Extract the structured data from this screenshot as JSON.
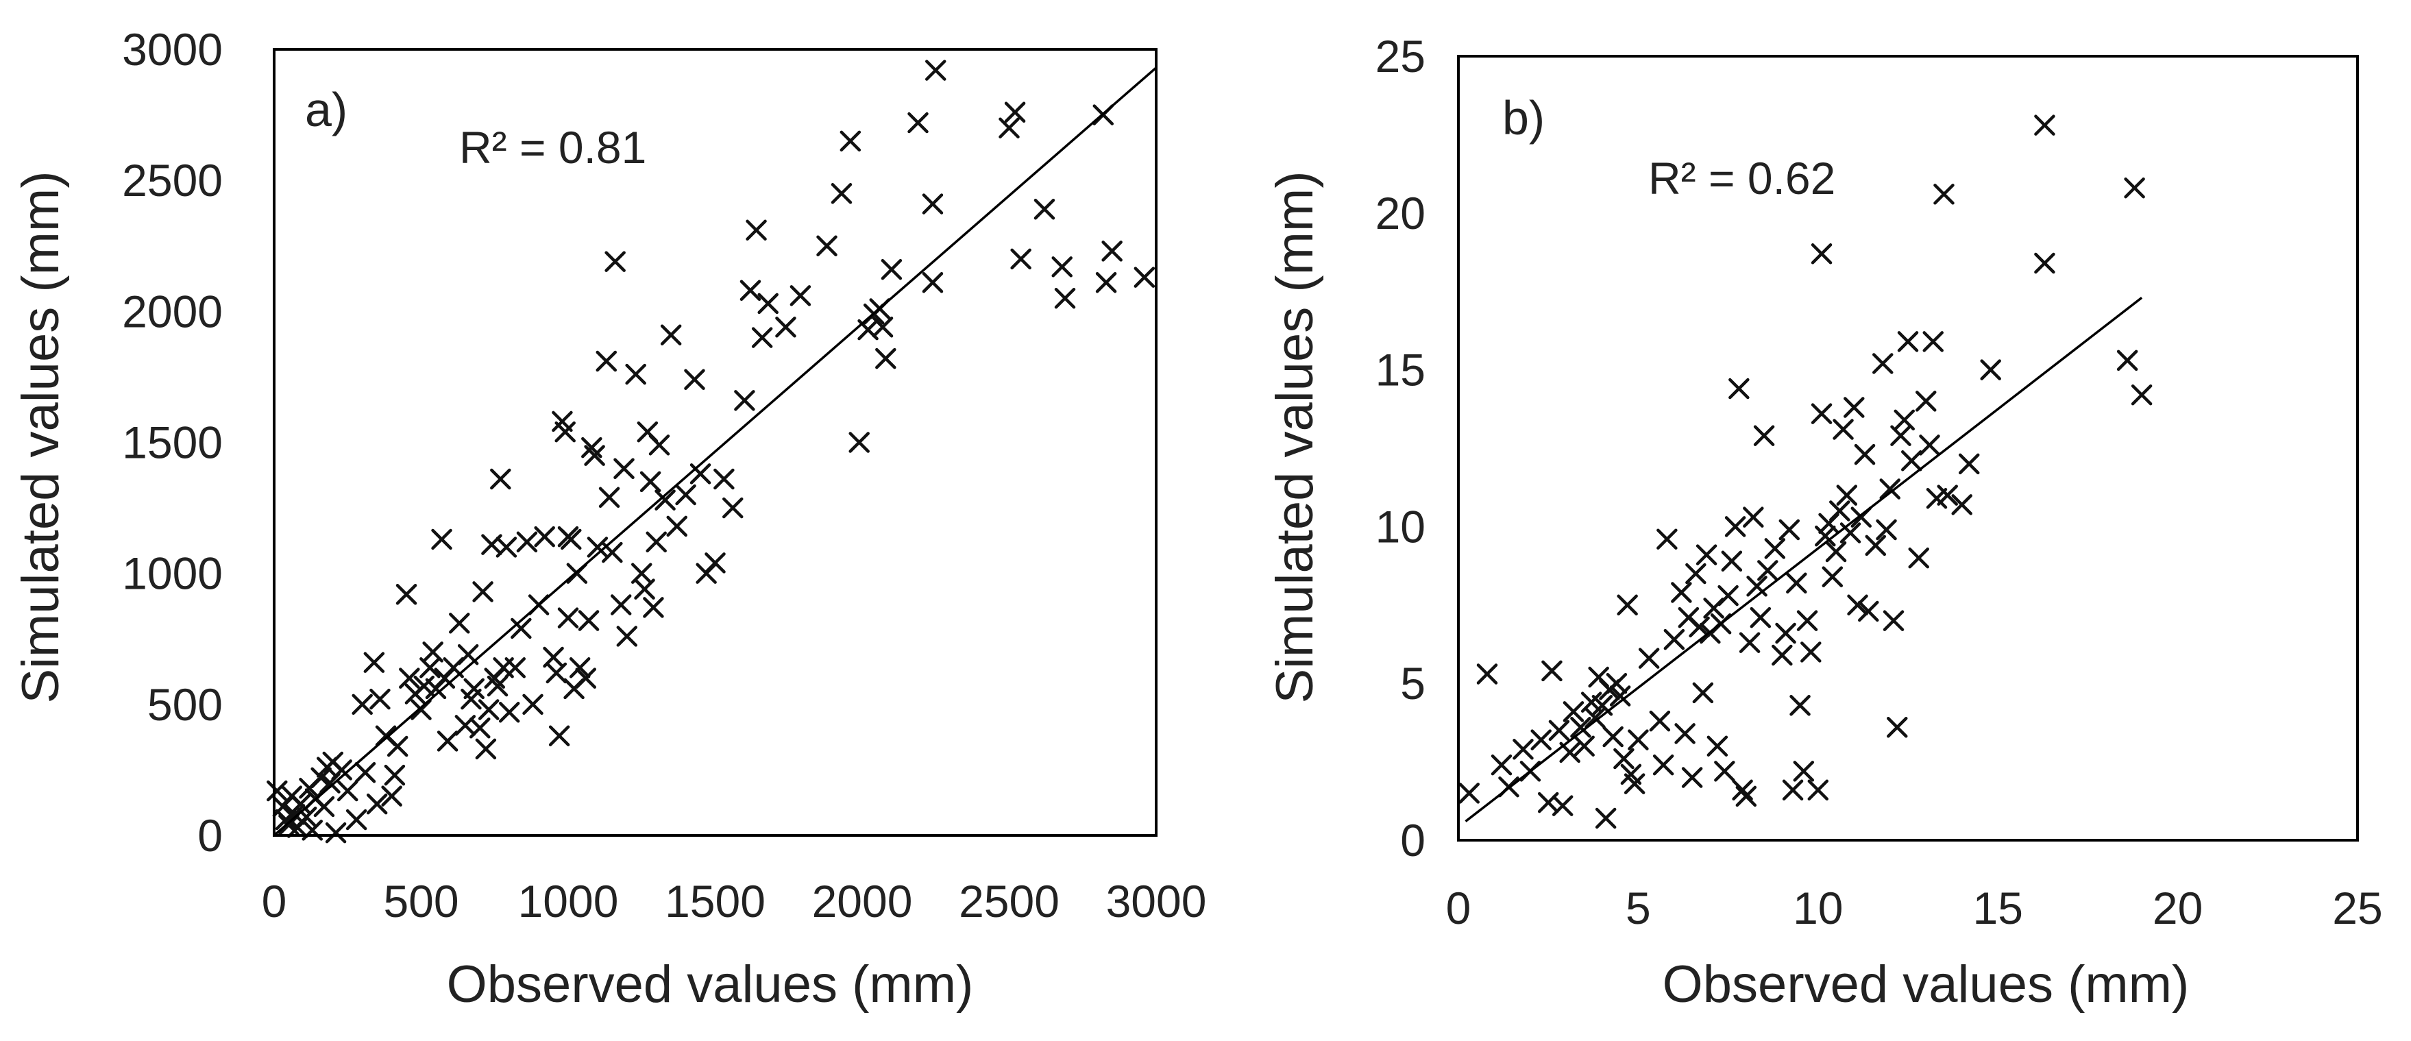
{
  "chart_data": [
    {
      "type": "scatter",
      "panel_label": "a)",
      "annotation": "R² = 0.81",
      "xlabel": "Observed values (mm)",
      "ylabel": "Simulated values (mm)",
      "xlim": [
        0,
        3000
      ],
      "ylim": [
        0,
        3000
      ],
      "xticks": [
        "0",
        "500",
        "1000",
        "1500",
        "2000",
        "2500",
        "3000"
      ],
      "yticks": [
        "0",
        "500",
        "1000",
        "1500",
        "2000",
        "2500",
        "3000"
      ],
      "marker": "x",
      "grid": false,
      "trendline": {
        "x": [
          0,
          3000
        ],
        "y": [
          0,
          2930
        ]
      },
      "points": [
        [
          10,
          170
        ],
        [
          30,
          110
        ],
        [
          40,
          60
        ],
        [
          50,
          40
        ],
        [
          60,
          150
        ],
        [
          70,
          80
        ],
        [
          80,
          30
        ],
        [
          90,
          120
        ],
        [
          110,
          70
        ],
        [
          120,
          180
        ],
        [
          130,
          20
        ],
        [
          140,
          140
        ],
        [
          160,
          220
        ],
        [
          170,
          110
        ],
        [
          180,
          260
        ],
        [
          190,
          200
        ],
        [
          200,
          280
        ],
        [
          210,
          10
        ],
        [
          230,
          250
        ],
        [
          250,
          170
        ],
        [
          280,
          60
        ],
        [
          300,
          500
        ],
        [
          310,
          240
        ],
        [
          340,
          660
        ],
        [
          350,
          120
        ],
        [
          360,
          520
        ],
        [
          380,
          380
        ],
        [
          400,
          150
        ],
        [
          410,
          230
        ],
        [
          420,
          340
        ],
        [
          450,
          920
        ],
        [
          460,
          600
        ],
        [
          480,
          540
        ],
        [
          500,
          480
        ],
        [
          510,
          570
        ],
        [
          530,
          640
        ],
        [
          540,
          700
        ],
        [
          550,
          560
        ],
        [
          570,
          1130
        ],
        [
          580,
          600
        ],
        [
          590,
          360
        ],
        [
          610,
          640
        ],
        [
          630,
          810
        ],
        [
          650,
          420
        ],
        [
          660,
          690
        ],
        [
          670,
          520
        ],
        [
          680,
          560
        ],
        [
          700,
          410
        ],
        [
          710,
          930
        ],
        [
          720,
          330
        ],
        [
          730,
          480
        ],
        [
          740,
          1110
        ],
        [
          750,
          600
        ],
        [
          760,
          570
        ],
        [
          770,
          1360
        ],
        [
          780,
          640
        ],
        [
          790,
          1100
        ],
        [
          800,
          470
        ],
        [
          820,
          640
        ],
        [
          840,
          790
        ],
        [
          860,
          1120
        ],
        [
          880,
          500
        ],
        [
          900,
          880
        ],
        [
          920,
          1140
        ],
        [
          950,
          680
        ],
        [
          960,
          620
        ],
        [
          970,
          380
        ],
        [
          980,
          1580
        ],
        [
          990,
          1540
        ],
        [
          1000,
          1140
        ],
        [
          1000,
          830
        ],
        [
          1010,
          1130
        ],
        [
          1020,
          560
        ],
        [
          1030,
          1000
        ],
        [
          1040,
          640
        ],
        [
          1060,
          600
        ],
        [
          1070,
          820
        ],
        [
          1080,
          1480
        ],
        [
          1090,
          1450
        ],
        [
          1100,
          1100
        ],
        [
          1130,
          1810
        ],
        [
          1140,
          1290
        ],
        [
          1150,
          1080
        ],
        [
          1160,
          2190
        ],
        [
          1180,
          880
        ],
        [
          1190,
          1400
        ],
        [
          1200,
          760
        ],
        [
          1230,
          1760
        ],
        [
          1250,
          1000
        ],
        [
          1260,
          940
        ],
        [
          1270,
          1540
        ],
        [
          1280,
          1350
        ],
        [
          1290,
          870
        ],
        [
          1300,
          1120
        ],
        [
          1310,
          1490
        ],
        [
          1330,
          1280
        ],
        [
          1350,
          1910
        ],
        [
          1370,
          1180
        ],
        [
          1400,
          1300
        ],
        [
          1430,
          1740
        ],
        [
          1450,
          1380
        ],
        [
          1470,
          1000
        ],
        [
          1500,
          1040
        ],
        [
          1530,
          1360
        ],
        [
          1560,
          1250
        ],
        [
          1600,
          1660
        ],
        [
          1620,
          2080
        ],
        [
          1640,
          2310
        ],
        [
          1660,
          1900
        ],
        [
          1680,
          2030
        ],
        [
          1740,
          1940
        ],
        [
          1790,
          2060
        ],
        [
          1880,
          2250
        ],
        [
          1930,
          2450
        ],
        [
          1960,
          2650
        ],
        [
          1990,
          1500
        ],
        [
          2020,
          1930
        ],
        [
          2040,
          1990
        ],
        [
          2060,
          2010
        ],
        [
          2070,
          1940
        ],
        [
          2080,
          1820
        ],
        [
          2100,
          2160
        ],
        [
          2190,
          2720
        ],
        [
          2240,
          2410
        ],
        [
          2240,
          2110
        ],
        [
          2250,
          2920
        ],
        [
          2500,
          2700
        ],
        [
          2520,
          2760
        ],
        [
          2540,
          2200
        ],
        [
          2620,
          2390
        ],
        [
          2680,
          2170
        ],
        [
          2690,
          2050
        ],
        [
          2820,
          2750
        ],
        [
          2830,
          2110
        ],
        [
          2850,
          2230
        ],
        [
          2960,
          2130
        ]
      ]
    },
    {
      "type": "scatter",
      "panel_label": "b)",
      "annotation": "R² = 0.62",
      "xlabel": "Observed values (mm)",
      "ylabel": "Simulated values (mm)",
      "xlim": [
        0,
        25
      ],
      "ylim": [
        0,
        25
      ],
      "xticks": [
        "0",
        "5",
        "10",
        "15",
        "20",
        "25"
      ],
      "yticks": [
        "0",
        "5",
        "10",
        "15",
        "20",
        "25"
      ],
      "marker": "x",
      "grid": false,
      "trendline": {
        "x": [
          0.2,
          19
        ],
        "y": [
          0.6,
          17.3
        ]
      },
      "points": [
        [
          0.3,
          1.5
        ],
        [
          0.8,
          5.3
        ],
        [
          1.2,
          2.4
        ],
        [
          1.4,
          1.7
        ],
        [
          1.8,
          2.9
        ],
        [
          2.0,
          2.2
        ],
        [
          2.3,
          3.2
        ],
        [
          2.5,
          1.2
        ],
        [
          2.6,
          5.4
        ],
        [
          2.8,
          3.5
        ],
        [
          2.9,
          1.1
        ],
        [
          3.1,
          2.8
        ],
        [
          3.2,
          4.1
        ],
        [
          3.4,
          3.6
        ],
        [
          3.5,
          3.0
        ],
        [
          3.7,
          4.4
        ],
        [
          3.8,
          3.9
        ],
        [
          3.9,
          5.2
        ],
        [
          4.0,
          4.3
        ],
        [
          4.1,
          0.7
        ],
        [
          4.2,
          4.8
        ],
        [
          4.3,
          3.3
        ],
        [
          4.4,
          5.0
        ],
        [
          4.5,
          4.6
        ],
        [
          4.6,
          2.6
        ],
        [
          4.7,
          7.5
        ],
        [
          4.8,
          2.1
        ],
        [
          4.9,
          1.8
        ],
        [
          5.0,
          3.2
        ],
        [
          5.3,
          5.8
        ],
        [
          5.6,
          3.8
        ],
        [
          5.7,
          2.4
        ],
        [
          5.8,
          9.6
        ],
        [
          6.0,
          6.4
        ],
        [
          6.2,
          7.9
        ],
        [
          6.3,
          3.4
        ],
        [
          6.4,
          7.1
        ],
        [
          6.5,
          2.0
        ],
        [
          6.6,
          8.5
        ],
        [
          6.7,
          6.8
        ],
        [
          6.8,
          4.7
        ],
        [
          6.9,
          9.1
        ],
        [
          7.0,
          6.6
        ],
        [
          7.1,
          7.4
        ],
        [
          7.2,
          3.0
        ],
        [
          7.3,
          6.9
        ],
        [
          7.4,
          2.2
        ],
        [
          7.5,
          7.8
        ],
        [
          7.6,
          8.9
        ],
        [
          7.7,
          10.0
        ],
        [
          7.8,
          14.4
        ],
        [
          7.9,
          1.6
        ],
        [
          8.0,
          1.4
        ],
        [
          8.1,
          6.3
        ],
        [
          8.2,
          10.3
        ],
        [
          8.3,
          8.1
        ],
        [
          8.4,
          7.1
        ],
        [
          8.5,
          12.9
        ],
        [
          8.6,
          8.6
        ],
        [
          8.8,
          9.3
        ],
        [
          9.0,
          5.9
        ],
        [
          9.1,
          6.6
        ],
        [
          9.2,
          9.9
        ],
        [
          9.3,
          1.6
        ],
        [
          9.4,
          8.2
        ],
        [
          9.5,
          4.3
        ],
        [
          9.6,
          2.2
        ],
        [
          9.7,
          7.0
        ],
        [
          9.8,
          6.0
        ],
        [
          10.0,
          1.6
        ],
        [
          10.1,
          13.6
        ],
        [
          10.1,
          18.7
        ],
        [
          10.2,
          9.7
        ],
        [
          10.3,
          10.1
        ],
        [
          10.4,
          8.4
        ],
        [
          10.5,
          9.2
        ],
        [
          10.6,
          10.5
        ],
        [
          10.7,
          13.1
        ],
        [
          10.8,
          11.0
        ],
        [
          10.9,
          9.8
        ],
        [
          11.0,
          13.8
        ],
        [
          11.1,
          7.5
        ],
        [
          11.2,
          10.3
        ],
        [
          11.3,
          12.3
        ],
        [
          11.4,
          7.3
        ],
        [
          11.6,
          9.4
        ],
        [
          11.8,
          15.2
        ],
        [
          11.9,
          9.9
        ],
        [
          12.0,
          11.2
        ],
        [
          12.1,
          7.0
        ],
        [
          12.2,
          3.6
        ],
        [
          12.3,
          12.9
        ],
        [
          12.4,
          13.4
        ],
        [
          12.5,
          15.9
        ],
        [
          12.6,
          12.1
        ],
        [
          12.8,
          9.0
        ],
        [
          13.0,
          14.0
        ],
        [
          13.1,
          12.6
        ],
        [
          13.2,
          15.9
        ],
        [
          13.3,
          10.9
        ],
        [
          13.5,
          20.6
        ],
        [
          13.6,
          11.0
        ],
        [
          14.0,
          10.7
        ],
        [
          14.2,
          12.0
        ],
        [
          14.8,
          15.0
        ],
        [
          16.3,
          22.8
        ],
        [
          16.3,
          18.4
        ],
        [
          18.6,
          15.3
        ],
        [
          18.8,
          20.8
        ],
        [
          19.0,
          14.2
        ]
      ]
    }
  ]
}
